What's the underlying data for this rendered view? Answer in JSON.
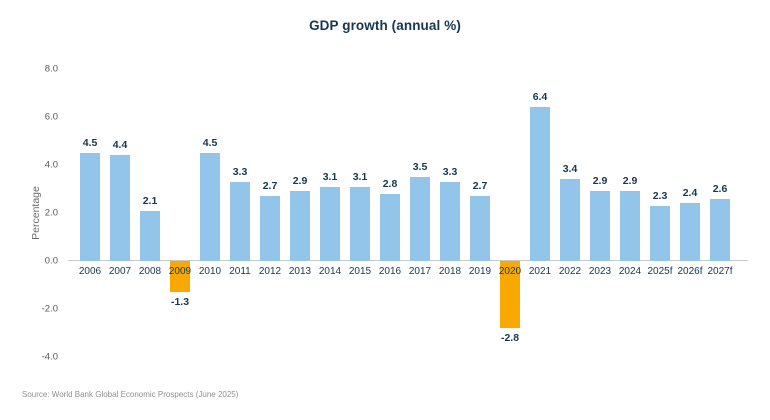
{
  "title": "GDP growth (annual %)",
  "source": "Source: World Bank Global Economic Prospects (June 2025)",
  "colors": {
    "bar_positive": "#92C5E9",
    "bar_negative": "#F9A800",
    "text_navy": "#15374F",
    "axis_line": "#c9c9c9",
    "tick_gray": "#575756"
  },
  "chart_data": {
    "type": "bar",
    "title": "GDP growth (annual %)",
    "xlabel": "",
    "ylabel": "Percentage",
    "categories": [
      "2006",
      "2007",
      "2008",
      "2009",
      "2010",
      "2011",
      "2012",
      "2013",
      "2014",
      "2015",
      "2016",
      "2017",
      "2018",
      "2019",
      "2020",
      "2021",
      "2022",
      "2023",
      "2024",
      "2025f",
      "2026f",
      "2027f"
    ],
    "values": [
      4.5,
      4.4,
      2.1,
      -1.3,
      4.5,
      3.3,
      2.7,
      2.9,
      3.1,
      3.1,
      2.8,
      3.5,
      3.3,
      2.7,
      -2.8,
      6.4,
      3.4,
      2.9,
      2.9,
      2.3,
      2.4,
      2.6
    ],
    "ylim": [
      -4.0,
      8.0
    ],
    "yticks": [
      8.0,
      6.0,
      4.0,
      2.0,
      0.0,
      -2.0,
      -4.0
    ],
    "grid": false,
    "legend": "none",
    "negative_bar_color_note": "negative-value bars rendered in orange"
  }
}
